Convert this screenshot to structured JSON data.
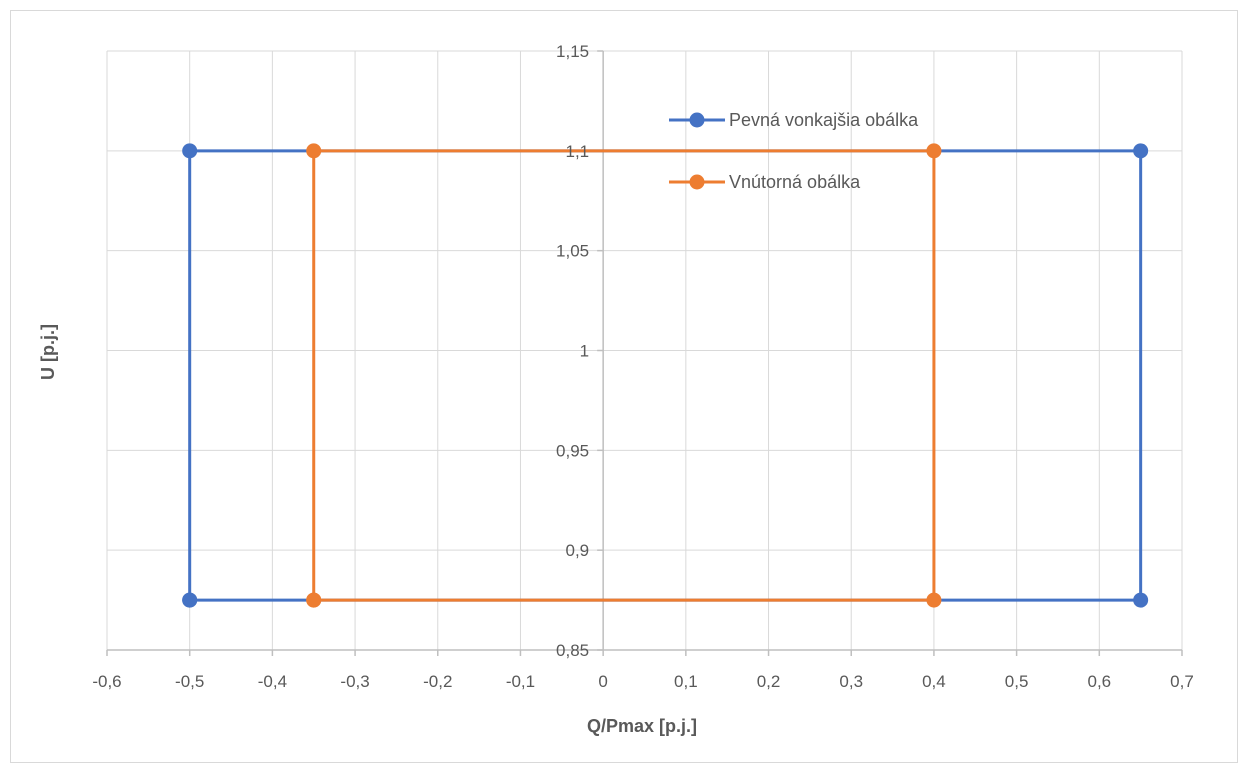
{
  "chart_data": {
    "type": "scatter",
    "xlabel": "Q/Pmax [p.j.]",
    "ylabel": "U [p.j.]",
    "xlim": [
      -0.6,
      0.7
    ],
    "ylim": [
      0.85,
      1.15
    ],
    "x_ticks": [
      -0.6,
      -0.5,
      -0.4,
      -0.3,
      -0.2,
      -0.1,
      0,
      0.1,
      0.2,
      0.3,
      0.4,
      0.5,
      0.6,
      0.7
    ],
    "x_tick_labels": [
      "-0,6",
      "-0,5",
      "-0,4",
      "-0,3",
      "-0,2",
      "-0,1",
      "0",
      "0,1",
      "0,2",
      "0,3",
      "0,4",
      "0,5",
      "0,6",
      "0,7"
    ],
    "y_ticks": [
      0.85,
      0.9,
      0.95,
      1,
      1.05,
      1.1,
      1.15
    ],
    "y_tick_labels": [
      "0,85",
      "0,9",
      "0,95",
      "1",
      "1,05",
      "1,1",
      "1,15"
    ],
    "grid": true,
    "legend_position": "top-right",
    "series": [
      {
        "name": "Pevná vonkajšia obálka",
        "color": "#4472c4",
        "points": [
          {
            "x": -0.5,
            "y": 0.875
          },
          {
            "x": -0.5,
            "y": 1.1
          },
          {
            "x": 0.65,
            "y": 1.1
          },
          {
            "x": 0.65,
            "y": 0.875
          },
          {
            "x": -0.5,
            "y": 0.875
          }
        ]
      },
      {
        "name": "Vnútorná obálka",
        "color": "#ed7d31",
        "points": [
          {
            "x": -0.35,
            "y": 0.875
          },
          {
            "x": -0.35,
            "y": 1.1
          },
          {
            "x": 0.4,
            "y": 1.1
          },
          {
            "x": 0.4,
            "y": 0.875
          },
          {
            "x": -0.35,
            "y": 0.875
          }
        ]
      }
    ]
  }
}
